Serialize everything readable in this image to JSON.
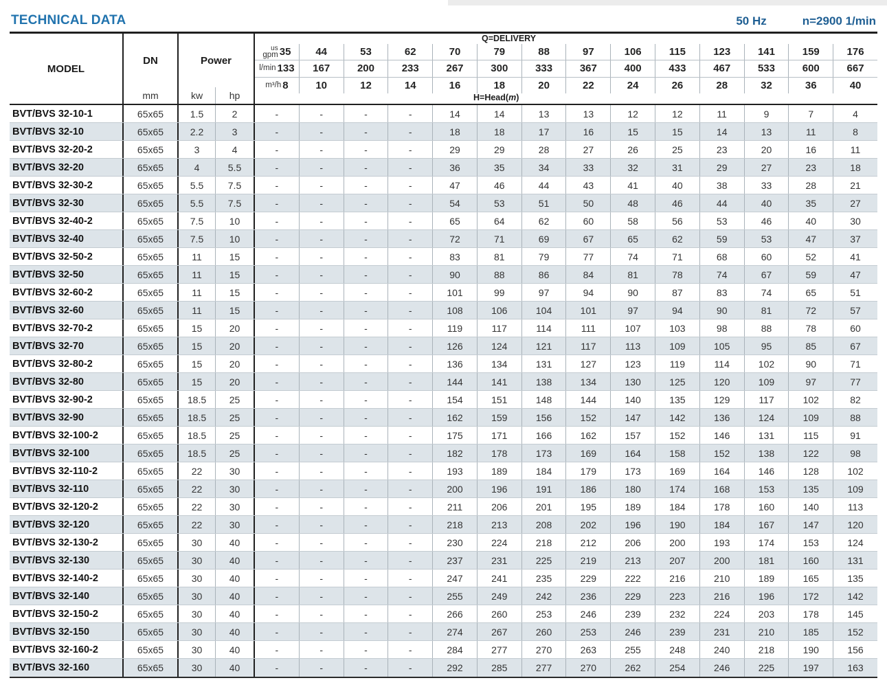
{
  "page": {
    "title": "TECHNICAL DATA",
    "frequency": "50 Hz",
    "speed": "n=2900 1/min"
  },
  "table": {
    "col_model": "MODEL",
    "col_dn": "DN",
    "col_dn_unit": "mm",
    "col_power": "Power",
    "col_kw": "kw",
    "col_hp": "hp",
    "delivery_label": "Q=DELIVERY",
    "head_label": {
      "prefix": "H=Head(",
      "symbol": "m",
      "suffix": ")"
    },
    "unit_rows": [
      {
        "u1": "us",
        "u2": "gpm",
        "values": [
          "35",
          "44",
          "53",
          "62",
          "70",
          "79",
          "88",
          "97",
          "106",
          "115",
          "123",
          "141",
          "159",
          "176"
        ]
      },
      {
        "u1": "",
        "u2": "l/min",
        "values": [
          "133",
          "167",
          "200",
          "233",
          "267",
          "300",
          "333",
          "367",
          "400",
          "433",
          "467",
          "533",
          "600",
          "667"
        ]
      },
      {
        "u1": "",
        "u2": "m³/h",
        "values": [
          "8",
          "10",
          "12",
          "14",
          "16",
          "18",
          "20",
          "22",
          "24",
          "26",
          "28",
          "32",
          "36",
          "40"
        ]
      }
    ],
    "rows": [
      {
        "model": "BVT/BVS 32-10-1",
        "dn": "65x65",
        "kw": "1.5",
        "hp": "2",
        "heads": [
          "-",
          "-",
          "-",
          "-",
          "14",
          "14",
          "13",
          "13",
          "12",
          "12",
          "11",
          "9",
          "7",
          "4"
        ]
      },
      {
        "model": "BVT/BVS 32-10",
        "dn": "65x65",
        "kw": "2.2",
        "hp": "3",
        "heads": [
          "-",
          "-",
          "-",
          "-",
          "18",
          "18",
          "17",
          "16",
          "15",
          "15",
          "14",
          "13",
          "11",
          "8"
        ]
      },
      {
        "model": "BVT/BVS 32-20-2",
        "dn": "65x65",
        "kw": "3",
        "hp": "4",
        "heads": [
          "-",
          "-",
          "-",
          "-",
          "29",
          "29",
          "28",
          "27",
          "26",
          "25",
          "23",
          "20",
          "16",
          "11"
        ]
      },
      {
        "model": "BVT/BVS 32-20",
        "dn": "65x65",
        "kw": "4",
        "hp": "5.5",
        "heads": [
          "-",
          "-",
          "-",
          "-",
          "36",
          "35",
          "34",
          "33",
          "32",
          "31",
          "29",
          "27",
          "23",
          "18"
        ]
      },
      {
        "model": "BVT/BVS 32-30-2",
        "dn": "65x65",
        "kw": "5.5",
        "hp": "7.5",
        "heads": [
          "-",
          "-",
          "-",
          "-",
          "47",
          "46",
          "44",
          "43",
          "41",
          "40",
          "38",
          "33",
          "28",
          "21"
        ]
      },
      {
        "model": "BVT/BVS 32-30",
        "dn": "65x65",
        "kw": "5.5",
        "hp": "7.5",
        "heads": [
          "-",
          "-",
          "-",
          "-",
          "54",
          "53",
          "51",
          "50",
          "48",
          "46",
          "44",
          "40",
          "35",
          "27"
        ]
      },
      {
        "model": "BVT/BVS 32-40-2",
        "dn": "65x65",
        "kw": "7.5",
        "hp": "10",
        "heads": [
          "-",
          "-",
          "-",
          "-",
          "65",
          "64",
          "62",
          "60",
          "58",
          "56",
          "53",
          "46",
          "40",
          "30"
        ]
      },
      {
        "model": "BVT/BVS 32-40",
        "dn": "65x65",
        "kw": "7.5",
        "hp": "10",
        "heads": [
          "-",
          "-",
          "-",
          "-",
          "72",
          "71",
          "69",
          "67",
          "65",
          "62",
          "59",
          "53",
          "47",
          "37"
        ]
      },
      {
        "model": "BVT/BVS 32-50-2",
        "dn": "65x65",
        "kw": "11",
        "hp": "15",
        "heads": [
          "-",
          "-",
          "-",
          "-",
          "83",
          "81",
          "79",
          "77",
          "74",
          "71",
          "68",
          "60",
          "52",
          "41"
        ]
      },
      {
        "model": "BVT/BVS 32-50",
        "dn": "65x65",
        "kw": "11",
        "hp": "15",
        "heads": [
          "-",
          "-",
          "-",
          "-",
          "90",
          "88",
          "86",
          "84",
          "81",
          "78",
          "74",
          "67",
          "59",
          "47"
        ]
      },
      {
        "model": "BVT/BVS 32-60-2",
        "dn": "65x65",
        "kw": "11",
        "hp": "15",
        "heads": [
          "-",
          "-",
          "-",
          "-",
          "101",
          "99",
          "97",
          "94",
          "90",
          "87",
          "83",
          "74",
          "65",
          "51"
        ]
      },
      {
        "model": "BVT/BVS 32-60",
        "dn": "65x65",
        "kw": "11",
        "hp": "15",
        "heads": [
          "-",
          "-",
          "-",
          "-",
          "108",
          "106",
          "104",
          "101",
          "97",
          "94",
          "90",
          "81",
          "72",
          "57"
        ]
      },
      {
        "model": "BVT/BVS 32-70-2",
        "dn": "65x65",
        "kw": "15",
        "hp": "20",
        "heads": [
          "-",
          "-",
          "-",
          "-",
          "119",
          "117",
          "114",
          "111",
          "107",
          "103",
          "98",
          "88",
          "78",
          "60"
        ]
      },
      {
        "model": "BVT/BVS 32-70",
        "dn": "65x65",
        "kw": "15",
        "hp": "20",
        "heads": [
          "-",
          "-",
          "-",
          "-",
          "126",
          "124",
          "121",
          "117",
          "113",
          "109",
          "105",
          "95",
          "85",
          "67"
        ]
      },
      {
        "model": "BVT/BVS 32-80-2",
        "dn": "65x65",
        "kw": "15",
        "hp": "20",
        "heads": [
          "-",
          "-",
          "-",
          "-",
          "136",
          "134",
          "131",
          "127",
          "123",
          "119",
          "114",
          "102",
          "90",
          "71"
        ]
      },
      {
        "model": "BVT/BVS 32-80",
        "dn": "65x65",
        "kw": "15",
        "hp": "20",
        "heads": [
          "-",
          "-",
          "-",
          "-",
          "144",
          "141",
          "138",
          "134",
          "130",
          "125",
          "120",
          "109",
          "97",
          "77"
        ]
      },
      {
        "model": "BVT/BVS 32-90-2",
        "dn": "65x65",
        "kw": "18.5",
        "hp": "25",
        "heads": [
          "-",
          "-",
          "-",
          "-",
          "154",
          "151",
          "148",
          "144",
          "140",
          "135",
          "129",
          "117",
          "102",
          "82"
        ]
      },
      {
        "model": "BVT/BVS 32-90",
        "dn": "65x65",
        "kw": "18.5",
        "hp": "25",
        "heads": [
          "-",
          "-",
          "-",
          "-",
          "162",
          "159",
          "156",
          "152",
          "147",
          "142",
          "136",
          "124",
          "109",
          "88"
        ]
      },
      {
        "model": "BVT/BVS 32-100-2",
        "dn": "65x65",
        "kw": "18.5",
        "hp": "25",
        "heads": [
          "-",
          "-",
          "-",
          "-",
          "175",
          "171",
          "166",
          "162",
          "157",
          "152",
          "146",
          "131",
          "115",
          "91"
        ]
      },
      {
        "model": "BVT/BVS 32-100",
        "dn": "65x65",
        "kw": "18.5",
        "hp": "25",
        "heads": [
          "-",
          "-",
          "-",
          "-",
          "182",
          "178",
          "173",
          "169",
          "164",
          "158",
          "152",
          "138",
          "122",
          "98"
        ]
      },
      {
        "model": "BVT/BVS 32-110-2",
        "dn": "65x65",
        "kw": "22",
        "hp": "30",
        "heads": [
          "-",
          "-",
          "-",
          "-",
          "193",
          "189",
          "184",
          "179",
          "173",
          "169",
          "164",
          "146",
          "128",
          "102"
        ]
      },
      {
        "model": "BVT/BVS 32-110",
        "dn": "65x65",
        "kw": "22",
        "hp": "30",
        "heads": [
          "-",
          "-",
          "-",
          "-",
          "200",
          "196",
          "191",
          "186",
          "180",
          "174",
          "168",
          "153",
          "135",
          "109"
        ]
      },
      {
        "model": "BVT/BVS 32-120-2",
        "dn": "65x65",
        "kw": "22",
        "hp": "30",
        "heads": [
          "-",
          "-",
          "-",
          "-",
          "211",
          "206",
          "201",
          "195",
          "189",
          "184",
          "178",
          "160",
          "140",
          "113"
        ]
      },
      {
        "model": "BVT/BVS 32-120",
        "dn": "65x65",
        "kw": "22",
        "hp": "30",
        "heads": [
          "-",
          "-",
          "-",
          "-",
          "218",
          "213",
          "208",
          "202",
          "196",
          "190",
          "184",
          "167",
          "147",
          "120"
        ]
      },
      {
        "model": "BVT/BVS 32-130-2",
        "dn": "65x65",
        "kw": "30",
        "hp": "40",
        "heads": [
          "-",
          "-",
          "-",
          "-",
          "230",
          "224",
          "218",
          "212",
          "206",
          "200",
          "193",
          "174",
          "153",
          "124"
        ]
      },
      {
        "model": "BVT/BVS 32-130",
        "dn": "65x65",
        "kw": "30",
        "hp": "40",
        "heads": [
          "-",
          "-",
          "-",
          "-",
          "237",
          "231",
          "225",
          "219",
          "213",
          "207",
          "200",
          "181",
          "160",
          "131"
        ]
      },
      {
        "model": "BVT/BVS 32-140-2",
        "dn": "65x65",
        "kw": "30",
        "hp": "40",
        "heads": [
          "-",
          "-",
          "-",
          "-",
          "247",
          "241",
          "235",
          "229",
          "222",
          "216",
          "210",
          "189",
          "165",
          "135"
        ]
      },
      {
        "model": "BVT/BVS 32-140",
        "dn": "65x65",
        "kw": "30",
        "hp": "40",
        "heads": [
          "-",
          "-",
          "-",
          "-",
          "255",
          "249",
          "242",
          "236",
          "229",
          "223",
          "216",
          "196",
          "172",
          "142"
        ]
      },
      {
        "model": "BVT/BVS 32-150-2",
        "dn": "65x65",
        "kw": "30",
        "hp": "40",
        "heads": [
          "-",
          "-",
          "-",
          "-",
          "266",
          "260",
          "253",
          "246",
          "239",
          "232",
          "224",
          "203",
          "178",
          "145"
        ]
      },
      {
        "model": "BVT/BVS 32-150",
        "dn": "65x65",
        "kw": "30",
        "hp": "40",
        "heads": [
          "-",
          "-",
          "-",
          "-",
          "274",
          "267",
          "260",
          "253",
          "246",
          "239",
          "231",
          "210",
          "185",
          "152"
        ]
      },
      {
        "model": "BVT/BVS 32-160-2",
        "dn": "65x65",
        "kw": "30",
        "hp": "40",
        "heads": [
          "-",
          "-",
          "-",
          "-",
          "284",
          "277",
          "270",
          "263",
          "255",
          "248",
          "240",
          "218",
          "190",
          "156"
        ]
      },
      {
        "model": "BVT/BVS 32-160",
        "dn": "65x65",
        "kw": "30",
        "hp": "40",
        "heads": [
          "-",
          "-",
          "-",
          "-",
          "292",
          "285",
          "277",
          "270",
          "262",
          "254",
          "246",
          "225",
          "197",
          "163"
        ]
      }
    ]
  }
}
